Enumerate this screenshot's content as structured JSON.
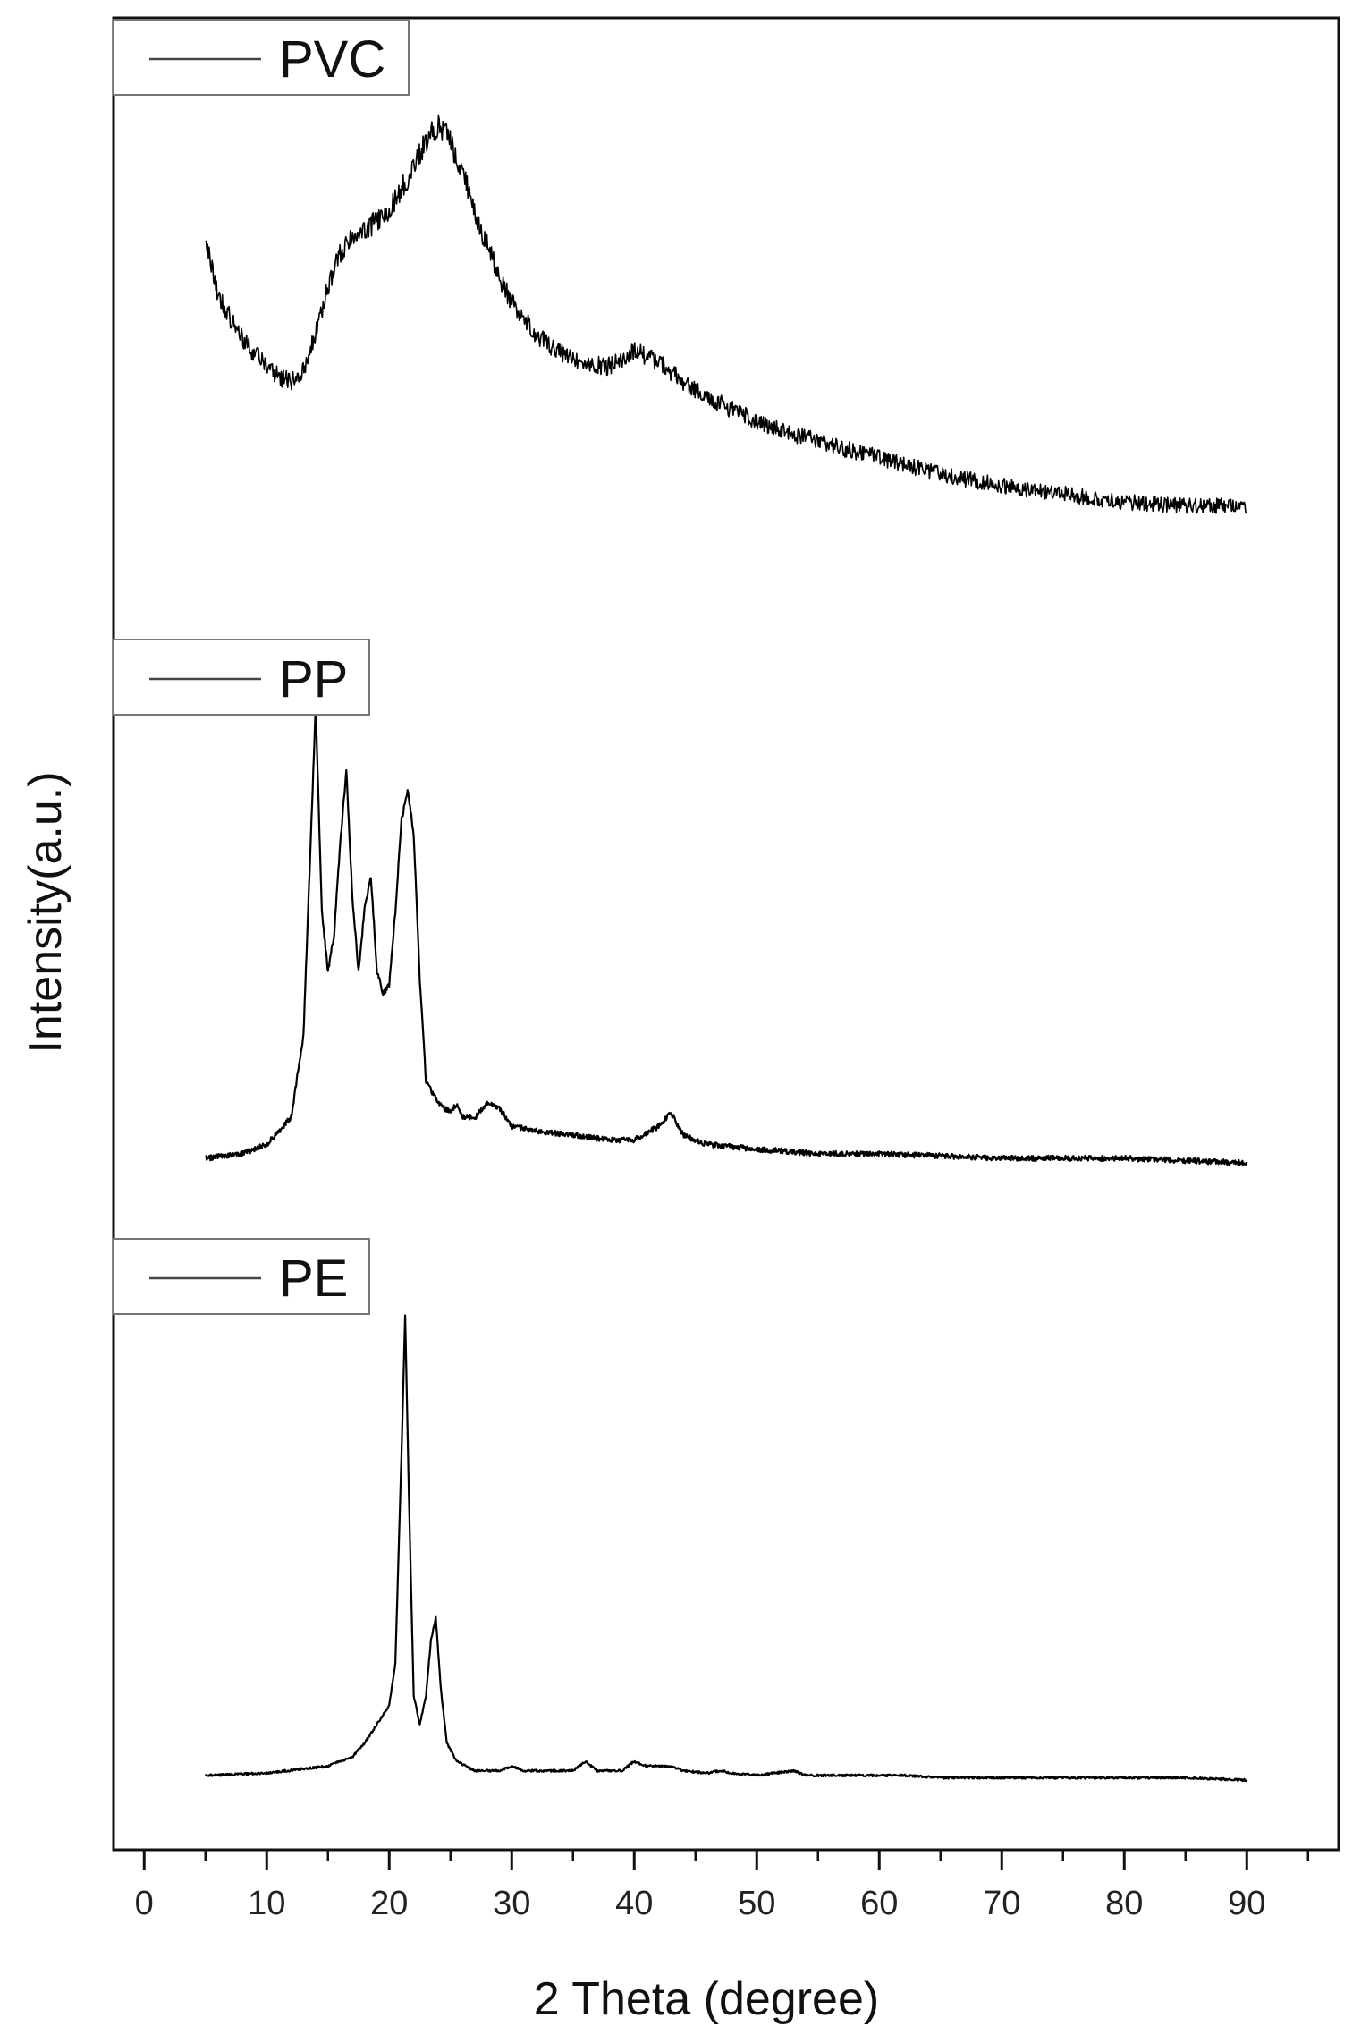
{
  "chart_data": {
    "type": "line",
    "xlabel": "2 Theta (degree)",
    "ylabel": "Intensity(a.u.)",
    "xlim": [
      -2.5,
      97.5
    ],
    "x_ticks": [
      0,
      10,
      20,
      30,
      40,
      50,
      60,
      70,
      80,
      90
    ],
    "x_tick_labels": [
      "0",
      "10",
      "20",
      "30",
      "40",
      "50",
      "60",
      "70",
      "80",
      "90"
    ],
    "y_ticks_shown": false,
    "grid": false,
    "legend_placement": "top-left of each panel",
    "series": [
      {
        "name": "PVC",
        "color": "#000000",
        "noisy": true,
        "x": [
          5,
          6,
          7,
          8,
          9,
          10,
          11,
          12,
          13,
          14,
          15,
          16,
          17,
          18,
          19,
          20,
          21,
          22,
          23,
          24,
          25,
          26,
          27,
          28,
          29,
          30,
          32,
          34,
          36,
          38,
          40,
          42,
          44,
          46,
          48,
          50,
          55,
          60,
          65,
          70,
          75,
          80,
          85,
          90
        ],
        "y": [
          72,
          58,
          52,
          47,
          43,
          40,
          37,
          36,
          39,
          48,
          60,
          68,
          72,
          74,
          76,
          79,
          84,
          90,
          96,
          100,
          96,
          88,
          78,
          70,
          62,
          56,
          48,
          43,
          40,
          40,
          44,
          41,
          36,
          32,
          29,
          26,
          21,
          17,
          13,
          10,
          8,
          6,
          5,
          5
        ]
      },
      {
        "name": "PP",
        "color": "#000000",
        "noisy": false,
        "x": [
          5,
          8,
          10,
          12,
          13,
          14,
          14.5,
          15,
          15.5,
          16,
          16.5,
          17,
          17.5,
          18,
          18.5,
          19,
          19.5,
          20,
          20.5,
          21,
          21.5,
          22,
          22.5,
          23,
          24,
          25,
          25.5,
          26,
          27,
          28,
          29,
          30,
          32,
          35,
          38,
          40,
          42,
          43,
          44,
          46,
          50,
          55,
          60,
          70,
          80,
          90
        ],
        "y": [
          1,
          2,
          4,
          10,
          28,
          100,
          55,
          42,
          50,
          70,
          86,
          58,
          42,
          56,
          63,
          42,
          37,
          39,
          55,
          75,
          82,
          72,
          40,
          18,
          13,
          11,
          13,
          10,
          10,
          13,
          12,
          8,
          7,
          6,
          5,
          5,
          8,
          11,
          6,
          4,
          3,
          2,
          2,
          1,
          1,
          0
        ]
      },
      {
        "name": "PE",
        "color": "#000000",
        "noisy": false,
        "x": [
          5,
          10,
          15,
          17,
          18,
          19,
          20,
          20.5,
          21,
          21.3,
          21.6,
          22,
          22.5,
          23,
          23.4,
          23.8,
          24.2,
          24.7,
          25.5,
          27,
          29,
          30,
          31,
          35,
          36,
          37,
          39,
          40,
          41,
          42,
          43,
          44,
          46,
          47,
          48,
          50,
          53,
          54,
          55,
          57,
          60,
          62,
          65,
          70,
          75,
          80,
          85,
          90
        ],
        "y": [
          1,
          1.5,
          3,
          5,
          8,
          12,
          16,
          25,
          70,
          100,
          62,
          18,
          12,
          18,
          30,
          35,
          20,
          8,
          4,
          2,
          2,
          3,
          2,
          2,
          4,
          2,
          2,
          4,
          3,
          3,
          3,
          2,
          1.5,
          2,
          1.5,
          1,
          2,
          1,
          1,
          1,
          1,
          1,
          0.5,
          0.5,
          0.5,
          0.5,
          0.5,
          0
        ]
      }
    ]
  }
}
